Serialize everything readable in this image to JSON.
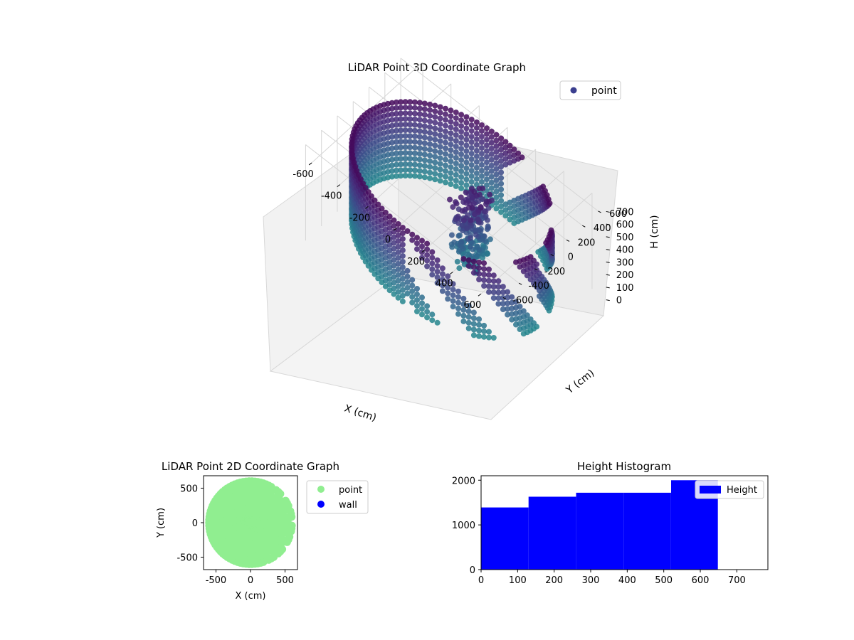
{
  "chart_data": [
    {
      "type": "scatter",
      "projection": "3d",
      "title": "LiDAR Point 3D Coordinate Graph",
      "xlabel": "X (cm)",
      "ylabel": "Y (cm)",
      "zlabel": "H (cm)",
      "xlim": [
        -700,
        700
      ],
      "ylim": [
        -700,
        700
      ],
      "zlim": [
        0,
        760
      ],
      "z_inverted": true,
      "xticks": [
        -600,
        -400,
        -200,
        0,
        200,
        400,
        600
      ],
      "yticks": [
        -600,
        -400,
        -200,
        0,
        200,
        400,
        600
      ],
      "zticks": [
        0,
        100,
        200,
        300,
        400,
        500,
        600,
        700
      ],
      "colormap": "viridis",
      "legend": {
        "placement": "top-right",
        "entries": [
          {
            "label": "point",
            "color": "#3b3f8f"
          }
        ]
      },
      "series": [
        {
          "name": "point",
          "shape": "cylindrical wall scan with gaps on +X side",
          "radius": 620,
          "height_range": [
            0,
            650
          ]
        }
      ],
      "grid": true
    },
    {
      "type": "scatter",
      "title": "LiDAR Point 2D Coordinate Graph",
      "xlabel": "X (cm)",
      "ylabel": "Y (cm)",
      "xlim": [
        -680,
        680
      ],
      "ylim": [
        -680,
        680
      ],
      "xticks": [
        -500,
        0,
        500
      ],
      "yticks": [
        -500,
        0,
        500
      ],
      "legend": {
        "placement": "outside-right",
        "entries": [
          {
            "label": "point",
            "color": "#90ee90"
          },
          {
            "label": "wall",
            "color": "#0000ff"
          }
        ]
      },
      "series": [
        {
          "name": "point",
          "color": "#90ee90",
          "shape": "filled disc",
          "radius": 610
        },
        {
          "name": "wall",
          "color": "#0000ff",
          "values": []
        }
      ]
    },
    {
      "type": "bar",
      "subtype": "histogram",
      "title": "Height Histogram",
      "xlabel": "",
      "ylabel": "",
      "xlim": [
        0,
        785
      ],
      "ylim": [
        0,
        2100
      ],
      "xticks": [
        0,
        100,
        200,
        300,
        400,
        500,
        600,
        700
      ],
      "yticks": [
        0,
        1000,
        2000
      ],
      "bins": [
        {
          "x0": 0,
          "x1": 130,
          "count": 1390
        },
        {
          "x0": 130,
          "x1": 260,
          "count": 1630
        },
        {
          "x0": 260,
          "x1": 390,
          "count": 1720
        },
        {
          "x0": 390,
          "x1": 520,
          "count": 1720
        },
        {
          "x0": 520,
          "x1": 648,
          "count": 2000
        }
      ],
      "bar_color": "#0000ff",
      "legend": {
        "placement": "top-right",
        "entries": [
          {
            "label": "Height",
            "color": "#0000ff"
          }
        ]
      }
    }
  ]
}
